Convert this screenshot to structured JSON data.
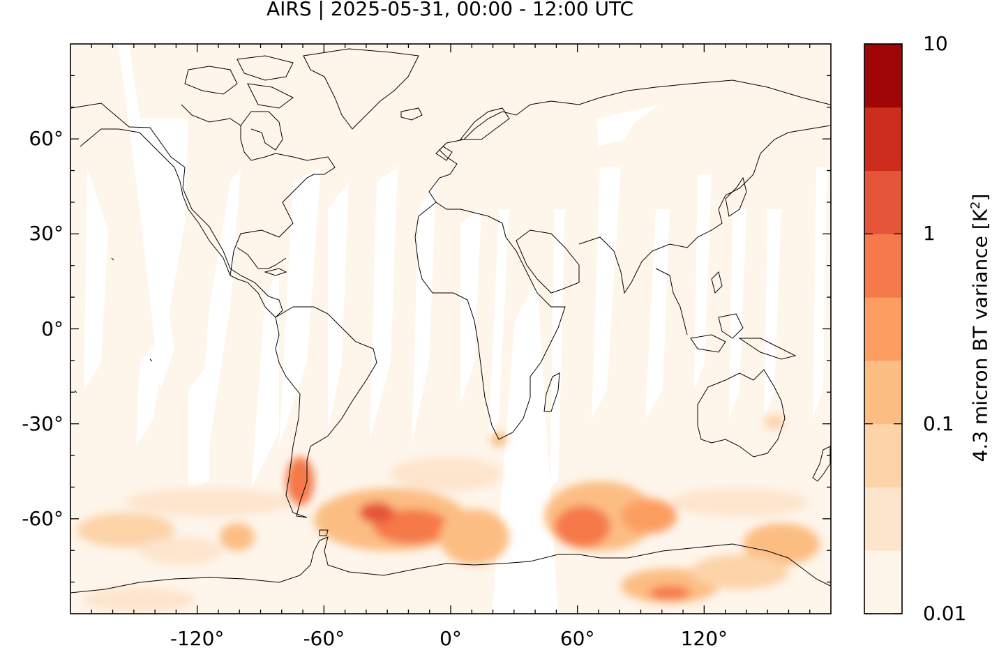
{
  "map": {
    "title": "AIRS | 2025-05-31, 00:00 - 12:00 UTC",
    "projection": "equirectangular",
    "extent": {
      "lon": [
        -180,
        180
      ],
      "lat": [
        -90,
        90
      ]
    },
    "lat_ticks": [
      {
        "value": 60,
        "label": "60°"
      },
      {
        "value": 30,
        "label": "30°"
      },
      {
        "value": 0,
        "label": "0°"
      },
      {
        "value": -30,
        "label": "-30°"
      },
      {
        "value": -60,
        "label": "-60°"
      }
    ],
    "lon_ticks": [
      {
        "value": -120,
        "label": "-120°"
      },
      {
        "value": -60,
        "label": "-60°"
      },
      {
        "value": 0,
        "label": "0°"
      },
      {
        "value": 60,
        "label": "60°"
      },
      {
        "value": 120,
        "label": "120°"
      }
    ],
    "background_color": "#fef5eb",
    "gap_color": "#ffffff",
    "coastline_color": "#000000"
  },
  "colorbar": {
    "title_main": "4.3 micron BT variance [K",
    "title_sup": "2",
    "title_end": "]",
    "scale": "log",
    "labels": [
      {
        "value": 10,
        "label": "10"
      },
      {
        "value": 1,
        "label": "1"
      },
      {
        "value": 0.1,
        "label": "0.1"
      },
      {
        "value": 0.01,
        "label": "0.01"
      }
    ],
    "colors": [
      "#fef5eb",
      "#fde5cd",
      "#fdd3a8",
      "#fcbd83",
      "#fc9e61",
      "#f5794a",
      "#e55539",
      "#cd2d1c",
      "#a00606"
    ]
  }
}
